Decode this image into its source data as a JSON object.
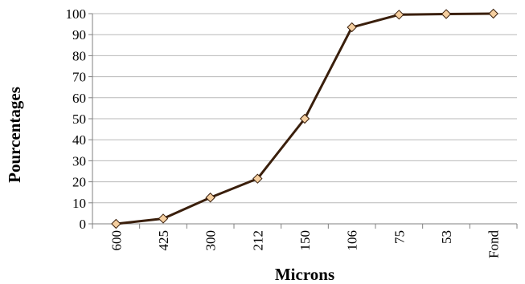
{
  "chart_data": {
    "type": "line",
    "categories": [
      "600",
      "425",
      "300",
      "212",
      "150",
      "106",
      "75",
      "53",
      "Fond"
    ],
    "series": [
      {
        "values": [
          0,
          2.5,
          12.5,
          21.5,
          50,
          93.5,
          99.5,
          99.8,
          100
        ]
      }
    ],
    "xlabel": "Microns",
    "ylabel": "Pourcentages",
    "ylim": [
      0,
      100
    ],
    "ytick_step": 10,
    "grid": "horizontal",
    "legend": "none",
    "colors": {
      "line": "#3a1f0c",
      "marker_fill": "#f5cfa0",
      "marker_stroke": "#3a1f0c",
      "grid": "#b8b8b8",
      "axis": "#808080"
    },
    "marker": "diamond"
  }
}
